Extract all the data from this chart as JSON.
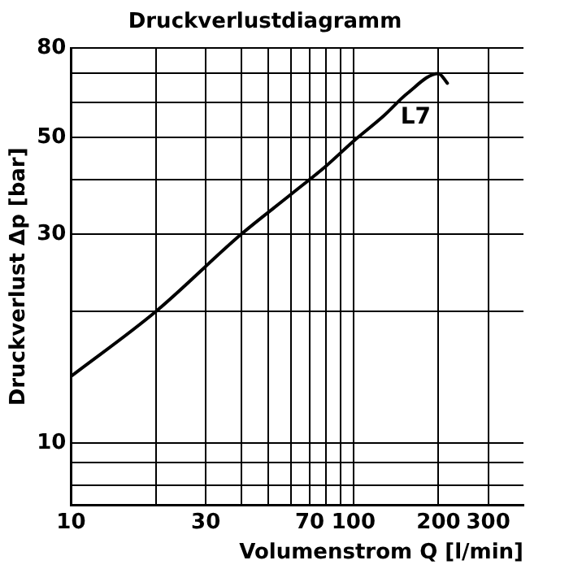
{
  "chart_data": {
    "type": "line",
    "title": "Druckverlustdiagramm",
    "xlabel": "Volumenstrom Q [l/min]",
    "ylabel": "Druckverlust Δp [bar]",
    "log": "xy",
    "grid": true,
    "legend": false,
    "marker": "none",
    "line_style": "solid",
    "xlim": [
      10,
      400
    ],
    "xticks": [
      10,
      {
        "value": 20,
        "label": null
      },
      30,
      {
        "value": 40,
        "label": null
      },
      {
        "value": 50,
        "label": null
      },
      {
        "value": 60,
        "label": null
      },
      70,
      {
        "value": 80,
        "label": null
      },
      {
        "value": 90,
        "label": null
      },
      100,
      200,
      300
    ],
    "ylim": [
      7.2,
      80
    ],
    "yticks": [
      {
        "value": 8,
        "label": null
      },
      {
        "value": 9,
        "label": null
      },
      10,
      {
        "value": 20,
        "label": null
      },
      30,
      {
        "value": 40,
        "label": null
      },
      50,
      {
        "value": 60,
        "label": null
      },
      {
        "value": 70,
        "label": null
      },
      80
    ],
    "series": [
      {
        "name": "L7",
        "color": "#000000",
        "x": [
          10,
          20,
          40,
          60,
          80,
          100,
          128,
          155,
          200,
          215
        ],
        "values": [
          14.2,
          20,
          30,
          37,
          43,
          49,
          56,
          63,
          70,
          66.5
        ]
      }
    ]
  }
}
